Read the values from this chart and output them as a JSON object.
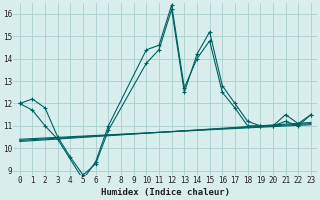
{
  "title": "",
  "xlabel": "Humidex (Indice chaleur)",
  "ylabel": "",
  "xlim": [
    -0.5,
    23.5
  ],
  "ylim": [
    8.8,
    16.5
  ],
  "yticks": [
    9,
    10,
    11,
    12,
    13,
    14,
    15,
    16
  ],
  "xticks": [
    0,
    1,
    2,
    3,
    4,
    5,
    6,
    7,
    8,
    9,
    10,
    11,
    12,
    13,
    14,
    15,
    16,
    17,
    18,
    19,
    20,
    21,
    22,
    23
  ],
  "bg_color": "#d8eeed",
  "line_color": "#006060",
  "grid_color": "#aacfcf",
  "series_main": [
    {
      "x": [
        0,
        1,
        2,
        3,
        4,
        5,
        6,
        7,
        10,
        11,
        12,
        13,
        14,
        15,
        16,
        17,
        18,
        19,
        20,
        21,
        22,
        23
      ],
      "y": [
        12.0,
        12.2,
        11.8,
        10.5,
        9.6,
        8.8,
        9.3,
        10.8,
        13.8,
        14.4,
        16.2,
        12.5,
        14.2,
        15.2,
        12.8,
        12.0,
        11.2,
        11.0,
        11.0,
        11.5,
        11.1,
        11.5
      ]
    },
    {
      "x": [
        0,
        1,
        2,
        3,
        5,
        6,
        7,
        10,
        11,
        12,
        13,
        14,
        15,
        16,
        17,
        18,
        19,
        20,
        21,
        22,
        23
      ],
      "y": [
        12.0,
        11.7,
        11.0,
        10.4,
        8.6,
        9.4,
        11.0,
        14.4,
        14.6,
        16.4,
        12.7,
        14.0,
        14.8,
        12.5,
        11.8,
        11.0,
        11.0,
        11.0,
        11.2,
        11.0,
        11.5
      ]
    }
  ],
  "series_flat": [
    {
      "x": [
        0,
        23
      ],
      "y": [
        10.4,
        11.05
      ]
    },
    {
      "x": [
        0,
        23
      ],
      "y": [
        10.35,
        11.1
      ]
    },
    {
      "x": [
        0,
        23
      ],
      "y": [
        10.3,
        11.15
      ]
    }
  ]
}
